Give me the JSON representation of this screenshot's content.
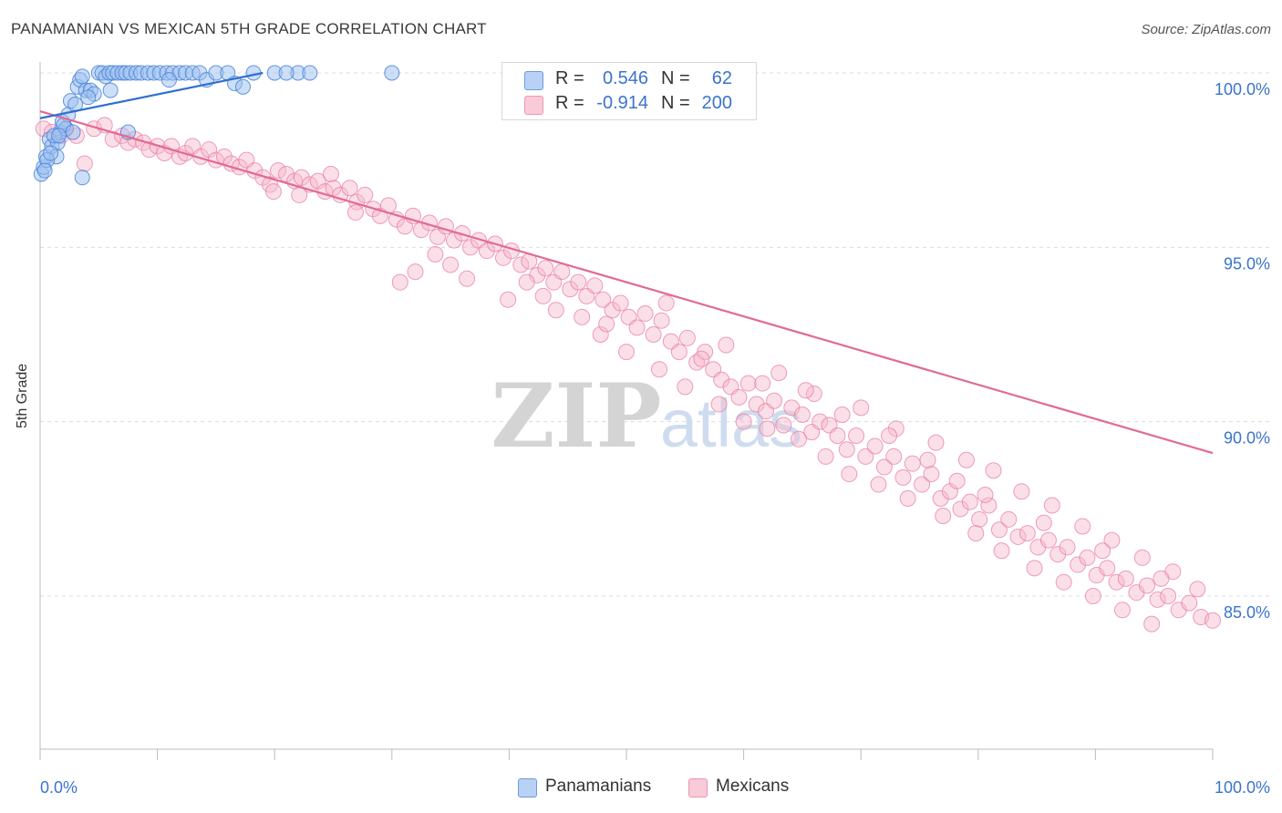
{
  "header": {
    "title": "PANAMANIAN VS MEXICAN 5TH GRADE CORRELATION CHART",
    "source": "Source: ZipAtlas.com"
  },
  "legend": {
    "rows": [
      {
        "r_label": "R =",
        "r_value": "0.546",
        "n_label": "N =",
        "n_value": "62"
      },
      {
        "r_label": "R =",
        "r_value": "-0.914",
        "n_label": "N =",
        "n_value": "200"
      }
    ]
  },
  "bottom_legend": [
    "Panamanians",
    "Mexicans"
  ],
  "watermark": "ZIPatlas",
  "colors": {
    "blue_fill": "#9cbff0",
    "blue_stroke": "#4a84d8",
    "blue_line": "#2f6fd0",
    "pink_fill": "#f6b8cb",
    "pink_stroke": "#e87fa0",
    "pink_line": "#e26a93",
    "tick_text": "#3a73cf",
    "grid": "#dcdcdc"
  },
  "chart_data": {
    "type": "scatter",
    "title": "PANAMANIAN VS MEXICAN 5TH GRADE CORRELATION CHART",
    "xlabel": "",
    "ylabel": "5th Grade",
    "xlim": [
      0,
      100
    ],
    "ylim": [
      80.0,
      100.5
    ],
    "x_tick_labels": [
      "0.0%",
      "100.0%"
    ],
    "y_ticks": [
      85.0,
      90.0,
      95.0,
      100.0
    ],
    "y_tick_labels": [
      "85.0%",
      "90.0%",
      "95.0%",
      "100.0%"
    ],
    "grid": true,
    "series": [
      {
        "name": "Panamanians",
        "r": 0.546,
        "n": 62,
        "trend": {
          "x": [
            0,
            19
          ],
          "y": [
            98.7,
            100.0
          ]
        },
        "points": [
          [
            0.1,
            97.1
          ],
          [
            0.3,
            97.3
          ],
          [
            0.5,
            97.6
          ],
          [
            0.8,
            98.1
          ],
          [
            1.0,
            97.9
          ],
          [
            1.4,
            97.6
          ],
          [
            1.5,
            98.0
          ],
          [
            1.7,
            98.3
          ],
          [
            1.9,
            98.6
          ],
          [
            2.2,
            98.4
          ],
          [
            2.4,
            98.8
          ],
          [
            2.6,
            99.2
          ],
          [
            3.0,
            99.1
          ],
          [
            3.2,
            99.6
          ],
          [
            3.4,
            99.8
          ],
          [
            3.6,
            99.9
          ],
          [
            3.9,
            99.5
          ],
          [
            4.3,
            99.5
          ],
          [
            4.6,
            99.4
          ],
          [
            5.0,
            100.0
          ],
          [
            5.3,
            100.0
          ],
          [
            5.6,
            99.9
          ],
          [
            5.9,
            100.0
          ],
          [
            6.2,
            100.0
          ],
          [
            6.6,
            100.0
          ],
          [
            7.0,
            100.0
          ],
          [
            7.3,
            100.0
          ],
          [
            7.7,
            100.0
          ],
          [
            8.2,
            100.0
          ],
          [
            8.6,
            100.0
          ],
          [
            9.2,
            100.0
          ],
          [
            9.7,
            100.0
          ],
          [
            10.2,
            100.0
          ],
          [
            10.8,
            100.0
          ],
          [
            11.3,
            100.0
          ],
          [
            11.9,
            100.0
          ],
          [
            12.4,
            100.0
          ],
          [
            13.0,
            100.0
          ],
          [
            13.6,
            100.0
          ],
          [
            14.2,
            99.8
          ],
          [
            15.0,
            100.0
          ],
          [
            16.0,
            100.0
          ],
          [
            16.6,
            99.7
          ],
          [
            17.3,
            99.6
          ],
          [
            18.2,
            100.0
          ],
          [
            22.0,
            100.0
          ],
          [
            23.0,
            100.0
          ],
          [
            30.0,
            100.0
          ],
          [
            2.0,
            98.5
          ],
          [
            0.6,
            97.5
          ],
          [
            1.2,
            98.2
          ],
          [
            2.8,
            98.3
          ],
          [
            3.6,
            97.0
          ],
          [
            7.5,
            98.3
          ],
          [
            4.1,
            99.3
          ],
          [
            0.4,
            97.2
          ],
          [
            6.0,
            99.5
          ],
          [
            11.0,
            99.8
          ],
          [
            20.0,
            100.0
          ],
          [
            21.0,
            100.0
          ],
          [
            0.9,
            97.7
          ],
          [
            1.6,
            98.2
          ]
        ]
      },
      {
        "name": "Mexicans",
        "r": -0.914,
        "n": 200,
        "trend": {
          "x": [
            0,
            100
          ],
          "y": [
            98.9,
            89.1
          ]
        },
        "points": [
          [
            0.3,
            98.4
          ],
          [
            1.0,
            98.3
          ],
          [
            1.8,
            98.2
          ],
          [
            2.2,
            98.4
          ],
          [
            3.1,
            98.2
          ],
          [
            3.8,
            97.4
          ],
          [
            4.6,
            98.4
          ],
          [
            5.5,
            98.5
          ],
          [
            6.2,
            98.1
          ],
          [
            7.0,
            98.2
          ],
          [
            7.5,
            98.0
          ],
          [
            8.1,
            98.1
          ],
          [
            8.8,
            98.0
          ],
          [
            9.3,
            97.8
          ],
          [
            10.0,
            97.9
          ],
          [
            10.6,
            97.7
          ],
          [
            11.2,
            97.9
          ],
          [
            11.9,
            97.6
          ],
          [
            12.4,
            97.7
          ],
          [
            13.0,
            97.9
          ],
          [
            13.7,
            97.6
          ],
          [
            14.4,
            97.8
          ],
          [
            15.0,
            97.5
          ],
          [
            15.7,
            97.6
          ],
          [
            16.3,
            97.4
          ],
          [
            17.0,
            97.3
          ],
          [
            17.6,
            97.5
          ],
          [
            18.3,
            97.2
          ],
          [
            19.0,
            97.0
          ],
          [
            19.6,
            96.8
          ],
          [
            20.3,
            97.2
          ],
          [
            21.0,
            97.1
          ],
          [
            21.7,
            96.9
          ],
          [
            22.3,
            97.0
          ],
          [
            23.0,
            96.8
          ],
          [
            23.7,
            96.9
          ],
          [
            24.3,
            96.6
          ],
          [
            25.0,
            96.7
          ],
          [
            25.6,
            96.5
          ],
          [
            26.4,
            96.7
          ],
          [
            27.0,
            96.3
          ],
          [
            27.7,
            96.5
          ],
          [
            28.4,
            96.1
          ],
          [
            29.0,
            95.9
          ],
          [
            29.7,
            96.2
          ],
          [
            30.4,
            95.8
          ],
          [
            31.1,
            95.6
          ],
          [
            31.8,
            95.9
          ],
          [
            32.5,
            95.5
          ],
          [
            33.2,
            95.7
          ],
          [
            33.9,
            95.3
          ],
          [
            34.6,
            95.6
          ],
          [
            35.3,
            95.2
          ],
          [
            36.0,
            95.4
          ],
          [
            36.7,
            95.0
          ],
          [
            37.4,
            95.2
          ],
          [
            38.1,
            94.9
          ],
          [
            38.8,
            95.1
          ],
          [
            39.5,
            94.7
          ],
          [
            40.2,
            94.9
          ],
          [
            41.0,
            94.5
          ],
          [
            41.7,
            94.6
          ],
          [
            42.4,
            94.2
          ],
          [
            43.1,
            94.4
          ],
          [
            43.8,
            94.0
          ],
          [
            44.5,
            94.3
          ],
          [
            45.2,
            93.8
          ],
          [
            45.9,
            94.0
          ],
          [
            46.6,
            93.6
          ],
          [
            47.3,
            93.9
          ],
          [
            48.0,
            93.5
          ],
          [
            48.8,
            93.2
          ],
          [
            49.5,
            93.4
          ],
          [
            50.2,
            93.0
          ],
          [
            50.9,
            92.7
          ],
          [
            51.6,
            93.1
          ],
          [
            52.3,
            92.5
          ],
          [
            53.0,
            92.9
          ],
          [
            53.8,
            92.3
          ],
          [
            54.5,
            92.0
          ],
          [
            55.2,
            92.4
          ],
          [
            56.0,
            91.7
          ],
          [
            56.7,
            92.0
          ],
          [
            57.4,
            91.5
          ],
          [
            58.1,
            91.2
          ],
          [
            58.9,
            91.0
          ],
          [
            59.6,
            90.7
          ],
          [
            60.4,
            91.1
          ],
          [
            61.1,
            90.5
          ],
          [
            61.9,
            90.3
          ],
          [
            62.6,
            90.6
          ],
          [
            63.4,
            89.9
          ],
          [
            64.1,
            90.4
          ],
          [
            65.0,
            90.2
          ],
          [
            65.8,
            89.7
          ],
          [
            66.5,
            90.0
          ],
          [
            67.3,
            89.9
          ],
          [
            68.0,
            89.6
          ],
          [
            68.8,
            89.2
          ],
          [
            69.6,
            89.6
          ],
          [
            70.4,
            89.0
          ],
          [
            71.2,
            89.3
          ],
          [
            72.0,
            88.7
          ],
          [
            72.8,
            89.0
          ],
          [
            73.6,
            88.4
          ],
          [
            74.4,
            88.8
          ],
          [
            75.2,
            88.2
          ],
          [
            76.0,
            88.5
          ],
          [
            76.8,
            87.8
          ],
          [
            77.6,
            88.0
          ],
          [
            78.5,
            87.5
          ],
          [
            79.3,
            87.7
          ],
          [
            80.1,
            87.2
          ],
          [
            80.9,
            87.6
          ],
          [
            81.8,
            86.9
          ],
          [
            82.6,
            87.2
          ],
          [
            83.4,
            86.7
          ],
          [
            84.2,
            86.8
          ],
          [
            85.1,
            86.4
          ],
          [
            86.0,
            86.6
          ],
          [
            86.8,
            86.2
          ],
          [
            87.6,
            86.4
          ],
          [
            88.5,
            85.9
          ],
          [
            89.3,
            86.1
          ],
          [
            90.1,
            85.6
          ],
          [
            91.0,
            85.8
          ],
          [
            91.8,
            85.4
          ],
          [
            92.6,
            85.5
          ],
          [
            93.5,
            85.1
          ],
          [
            94.4,
            85.3
          ],
          [
            95.3,
            84.9
          ],
          [
            96.2,
            85.0
          ],
          [
            97.1,
            84.6
          ],
          [
            98.0,
            84.8
          ],
          [
            99.0,
            84.4
          ],
          [
            100.0,
            84.3
          ],
          [
            30.7,
            94.0
          ],
          [
            32.0,
            94.3
          ],
          [
            35.0,
            94.5
          ],
          [
            39.9,
            93.5
          ],
          [
            41.5,
            94.0
          ],
          [
            44.0,
            93.2
          ],
          [
            46.2,
            93.0
          ],
          [
            47.8,
            92.5
          ],
          [
            50.0,
            92.0
          ],
          [
            52.8,
            91.5
          ],
          [
            55.0,
            91.0
          ],
          [
            57.9,
            90.5
          ],
          [
            60.0,
            90.0
          ],
          [
            62.0,
            89.8
          ],
          [
            64.7,
            89.5
          ],
          [
            67.0,
            89.0
          ],
          [
            69.0,
            88.5
          ],
          [
            71.5,
            88.2
          ],
          [
            74.0,
            87.8
          ],
          [
            77.0,
            87.3
          ],
          [
            79.8,
            86.8
          ],
          [
            82.0,
            86.3
          ],
          [
            84.8,
            85.8
          ],
          [
            87.3,
            85.4
          ],
          [
            89.8,
            85.0
          ],
          [
            92.3,
            84.6
          ],
          [
            94.8,
            84.2
          ],
          [
            97.3,
            83.9
          ],
          [
            99.5,
            83.6
          ],
          [
            53.4,
            93.4
          ],
          [
            58.5,
            92.2
          ],
          [
            63.0,
            91.4
          ],
          [
            66.0,
            90.8
          ],
          [
            70.0,
            90.4
          ],
          [
            73.0,
            89.8
          ],
          [
            76.4,
            89.4
          ],
          [
            79.0,
            88.9
          ],
          [
            81.3,
            88.6
          ],
          [
            83.7,
            88.0
          ],
          [
            86.3,
            87.6
          ],
          [
            88.9,
            87.0
          ],
          [
            91.4,
            86.6
          ],
          [
            94.0,
            86.1
          ],
          [
            96.6,
            85.7
          ],
          [
            98.7,
            85.2
          ],
          [
            24.8,
            97.1
          ],
          [
            26.9,
            96.0
          ],
          [
            33.7,
            94.8
          ],
          [
            36.4,
            94.1
          ],
          [
            42.9,
            93.6
          ],
          [
            48.3,
            92.8
          ],
          [
            56.4,
            91.8
          ],
          [
            61.6,
            91.1
          ],
          [
            65.3,
            90.9
          ],
          [
            68.4,
            90.2
          ],
          [
            72.4,
            89.6
          ],
          [
            75.7,
            88.9
          ],
          [
            78.2,
            88.3
          ],
          [
            80.6,
            87.9
          ],
          [
            85.6,
            87.1
          ],
          [
            90.6,
            86.3
          ],
          [
            95.6,
            85.5
          ],
          [
            22.1,
            96.5
          ],
          [
            19.9,
            96.6
          ]
        ]
      }
    ]
  }
}
